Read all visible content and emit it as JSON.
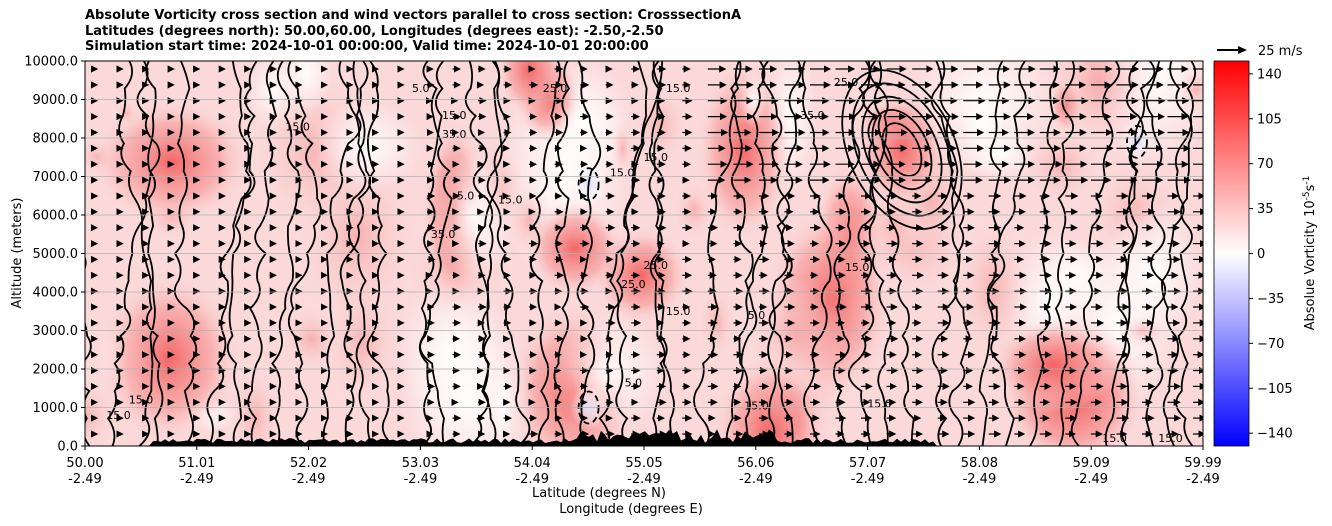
{
  "titles": {
    "line1": "Absolute Vorticity cross section and wind vectors parallel to cross section: CrosssectionA",
    "line2": "Latitudes (degrees north): 50.00,60.00, Longitudes (degrees east): -2.50,-2.50",
    "line3": "Simulation start time: 2024-10-01 00:00:00, Valid time: 2024-10-01 20:00:00"
  },
  "quiver_key": {
    "label": "25 m/s"
  },
  "colorbar": {
    "label": "Absolue Vorticity 10",
    "label_exponent": "-5",
    "label_unit_s": "s",
    "label_unit_exponent": "-1",
    "ticks": [
      "140",
      "105",
      "70",
      "35",
      "0",
      "−35",
      "−70",
      "−105",
      "−140"
    ],
    "range": [
      -150,
      150
    ],
    "colors": {
      "min": "#0000ff",
      "mid": "#ffffff",
      "max": "#ff0000"
    }
  },
  "chart_data": {
    "type": "heatmap",
    "title": "Absolute Vorticity cross section and wind vectors parallel to cross section: CrosssectionA",
    "xlabel_lat": "Latitude (degrees N)",
    "xlabel_lon": "Longitude (degrees E)",
    "ylabel": "Altitude (meters)",
    "x_ticks_lat": [
      "50.00",
      "51.01",
      "52.02",
      "53.03",
      "54.04",
      "55.05",
      "56.06",
      "57.07",
      "58.08",
      "59.09",
      "59.99"
    ],
    "x_ticks_lon": [
      "-2.49",
      "-2.49",
      "-2.49",
      "-2.49",
      "-2.49",
      "-2.49",
      "-2.49",
      "-2.49",
      "-2.49",
      "-2.49",
      "-2.49"
    ],
    "y_ticks": [
      "0.0",
      "1000.0",
      "2000.0",
      "3000.0",
      "4000.0",
      "5000.0",
      "6000.0",
      "7000.0",
      "8000.0",
      "9000.0",
      "10000.0"
    ],
    "xlim": [
      50.0,
      59.99
    ],
    "ylim": [
      0,
      10000
    ],
    "grid": "horizontal",
    "features": [
      {
        "lat": 57.3,
        "alt": 7700,
        "vorticity": 65
      },
      {
        "lat": 54.5,
        "alt": 6800,
        "vorticity": -5
      },
      {
        "lat": 54.5,
        "alt": 1000,
        "vorticity": -5
      },
      {
        "lat": 59.4,
        "alt": 7900,
        "vorticity": -5
      }
    ],
    "contour_labels": [
      {
        "text": "15.0",
        "lat": 51.9,
        "alt": 8200
      },
      {
        "text": "5.0",
        "lat": 53.0,
        "alt": 9200
      },
      {
        "text": "15.0",
        "lat": 53.3,
        "alt": 8500
      },
      {
        "text": "35.0",
        "lat": 53.3,
        "alt": 8000
      },
      {
        "text": "25.0",
        "lat": 54.2,
        "alt": 9200
      },
      {
        "text": "15.0",
        "lat": 55.3,
        "alt": 9200
      },
      {
        "text": "15.0",
        "lat": 55.1,
        "alt": 7400
      },
      {
        "text": "15.0",
        "lat": 54.8,
        "alt": 7000
      },
      {
        "text": "15.0",
        "lat": 53.8,
        "alt": 6300
      },
      {
        "text": "5.0",
        "lat": 53.4,
        "alt": 6400
      },
      {
        "text": "35.0",
        "lat": 56.5,
        "alt": 8500
      },
      {
        "text": "25.0",
        "lat": 56.8,
        "alt": 9350
      },
      {
        "text": "35.0",
        "lat": 53.2,
        "alt": 5400
      },
      {
        "text": "25.0",
        "lat": 55.1,
        "alt": 4600
      },
      {
        "text": "25.0",
        "lat": 54.9,
        "alt": 4100
      },
      {
        "text": "15.0",
        "lat": 55.3,
        "alt": 3400
      },
      {
        "text": "5.0",
        "lat": 56.0,
        "alt": 3300
      },
      {
        "text": "15.0",
        "lat": 56.9,
        "alt": 4550
      },
      {
        "text": "5.0",
        "lat": 54.9,
        "alt": 1550
      },
      {
        "text": "15.0",
        "lat": 56.0,
        "alt": 950
      },
      {
        "text": "15.0",
        "lat": 57.1,
        "alt": 1000
      },
      {
        "text": "15.0",
        "lat": 50.3,
        "alt": 700
      },
      {
        "text": "15.0",
        "lat": 50.5,
        "alt": 1100
      },
      {
        "text": "15.0",
        "lat": 59.2,
        "alt": 100
      },
      {
        "text": "15.0",
        "lat": 59.7,
        "alt": 100
      }
    ]
  }
}
